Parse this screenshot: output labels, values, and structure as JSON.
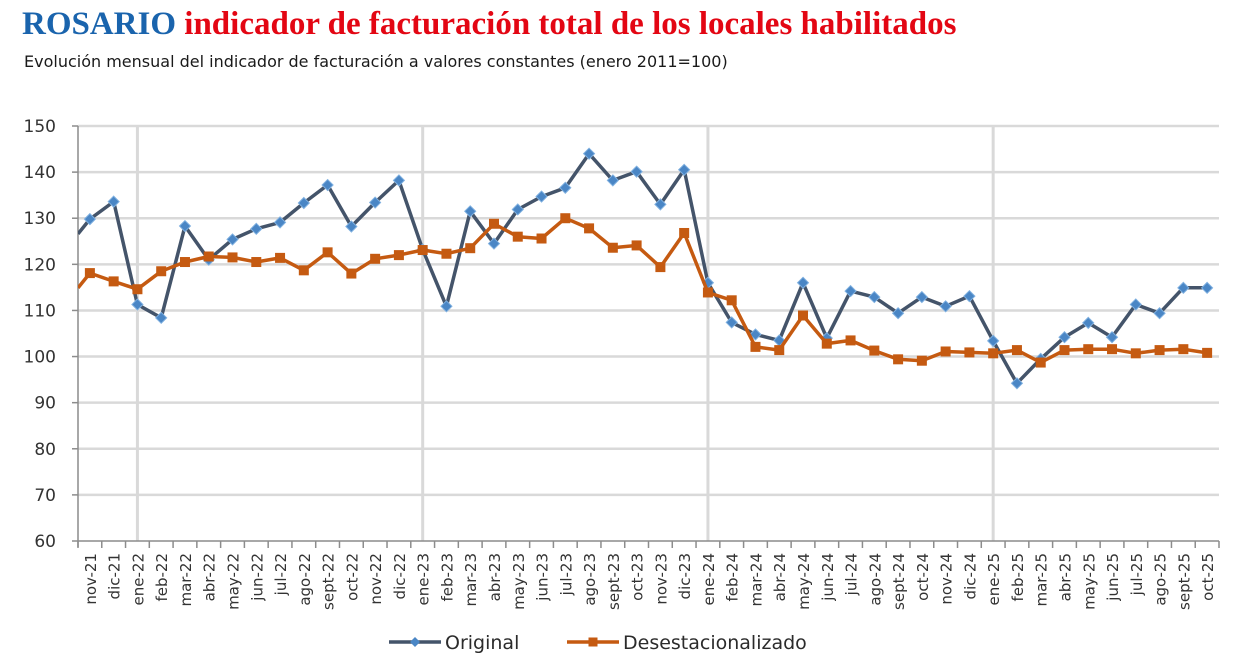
{
  "header": {
    "title_city": "ROSARIO",
    "title_rest": "indicador de facturación total de los locales habilitados",
    "subtitle": "Evolución mensual del indicador de facturación a valores constantes (enero 2011=100)"
  },
  "colors": {
    "title_city": "#1a64ad",
    "title_rest": "#e30613",
    "original_line": "#44546a",
    "original_marker": "#4a86c5",
    "desest_line": "#c55a11",
    "grid": "#d9d9d9",
    "axis": "#8c8c8c"
  },
  "chart_data": {
    "type": "line",
    "title": "ROSARIO indicador de facturación total de los locales habilitados",
    "subtitle": "Evolución mensual del indicador de facturación a valores constantes (enero 2011=100)",
    "xlabel": "",
    "ylabel": "",
    "ylim": [
      60,
      150
    ],
    "yticks": [
      60,
      70,
      80,
      90,
      100,
      110,
      120,
      130,
      140,
      150
    ],
    "grid": true,
    "year_separators": [
      "ene-22",
      "ene-23",
      "ene-24",
      "ene-25"
    ],
    "legend_position": "bottom",
    "categories": [
      "nov-21",
      "dic-21",
      "ene-22",
      "feb-22",
      "mar-22",
      "abr-22",
      "may-22",
      "jun-22",
      "jul-22",
      "ago-22",
      "sept-22",
      "oct-22",
      "nov-22",
      "dic-22",
      "ene-23",
      "feb-23",
      "mar-23",
      "abr-23",
      "may-23",
      "jun-23",
      "jul-23",
      "ago-23",
      "sept-23",
      "oct-23",
      "nov-23",
      "dic-23",
      "ene-24",
      "feb-24",
      "mar-24",
      "abr-24",
      "may-24",
      "jun-24",
      "jul-24",
      "ago-24",
      "sept-24",
      "oct-24",
      "nov-24",
      "dic-24",
      "ene-25",
      "feb-25",
      "mar-25",
      "abr-25",
      "may-25",
      "jun-25",
      "jul-25",
      "ago-25",
      "sept-25",
      "oct-25"
    ],
    "value_at_left_axis": {
      "Original": 126.6,
      "Desestacionalizado": 114.9
    },
    "series": [
      {
        "name": "Original",
        "marker": "diamond",
        "values": [
          129.8,
          133.6,
          111.3,
          108.4,
          128.3,
          121.0,
          125.4,
          127.7,
          129.1,
          133.3,
          137.2,
          128.2,
          133.4,
          138.2,
          123.2,
          110.9,
          131.5,
          124.5,
          131.9,
          134.7,
          136.6,
          144.0,
          138.2,
          140.1,
          133.0,
          140.5,
          116.0,
          107.4,
          104.8,
          103.5,
          116.0,
          104.0,
          114.2,
          112.9,
          109.4,
          112.9,
          110.9,
          113.1,
          103.4,
          94.2,
          99.5,
          104.2,
          107.3,
          104.2,
          111.3,
          109.4,
          114.9,
          114.9
        ]
      },
      {
        "name": "Desestacionalizado",
        "marker": "square",
        "values": [
          118.1,
          116.3,
          114.6,
          118.5,
          120.5,
          121.7,
          121.5,
          120.5,
          121.4,
          118.7,
          122.6,
          118.0,
          121.2,
          122.0,
          123.1,
          122.3,
          123.5,
          128.8,
          126.0,
          125.6,
          130.0,
          127.8,
          123.6,
          124.1,
          119.4,
          126.8,
          113.9,
          112.2,
          102.1,
          101.4,
          108.9,
          102.8,
          103.5,
          101.3,
          99.4,
          99.1,
          101.1,
          100.9,
          100.7,
          101.4,
          98.7,
          101.4,
          101.6,
          101.6,
          100.7,
          101.4,
          101.6,
          100.8
        ]
      }
    ],
    "legend": [
      "Original",
      "Desestacionalizado"
    ]
  }
}
